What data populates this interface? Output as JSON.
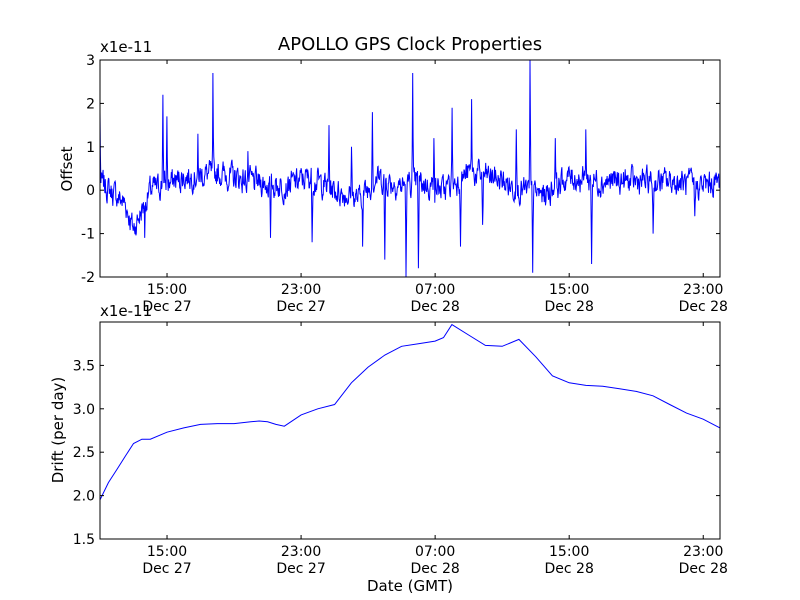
{
  "chart_data": [
    {
      "type": "line",
      "title": "APOLLO GPS Clock Properties",
      "ylabel": "Offset",
      "xlabel": "",
      "y_scale_label": "x1e-11",
      "y_scale": 1e-11,
      "ylim": [
        -2,
        3
      ],
      "yticks": [
        -2,
        -1,
        0,
        1,
        2,
        3
      ],
      "xlim": [
        "2015-12-27T11:00",
        "2015-12-29T00:00"
      ],
      "xticks": [
        {
          "x": "2015-12-27T15:00",
          "line1": "15:00",
          "line2": "Dec 27"
        },
        {
          "x": "2015-12-27T23:00",
          "line1": "23:00",
          "line2": "Dec 27"
        },
        {
          "x": "2015-12-28T07:00",
          "line1": "07:00",
          "line2": "Dec 28"
        },
        {
          "x": "2015-12-28T15:00",
          "line1": "15:00",
          "line2": "Dec 28"
        },
        {
          "x": "2015-12-28T23:00",
          "line1": "23:00",
          "line2": "Dec 28"
        }
      ],
      "color": "#0000ff",
      "noise_level": 0.25,
      "series": [
        {
          "x": [
            "2015-12-27T11:00",
            "2015-12-27T12:30",
            "2015-12-27T13:00",
            "2015-12-27T14:00",
            "2015-12-27T16:00",
            "2015-12-27T18:00",
            "2015-12-27T20:00",
            "2015-12-27T22:00",
            "2015-12-27T23:30",
            "2015-12-28T01:00",
            "2015-12-28T02:30",
            "2015-12-28T03:30",
            "2015-12-28T05:00",
            "2015-12-28T06:00",
            "2015-12-28T07:30",
            "2015-12-28T09:00",
            "2015-12-28T10:30",
            "2015-12-28T12:00",
            "2015-12-28T13:30",
            "2015-12-28T15:00",
            "2015-12-28T17:00",
            "2015-12-28T19:00",
            "2015-12-28T21:00",
            "2015-12-28T23:00",
            "2015-12-29T00:00"
          ],
          "values": [
            0.2,
            -0.3,
            -0.9,
            0.0,
            0.3,
            0.4,
            0.2,
            0.1,
            0.3,
            0.0,
            -0.2,
            0.3,
            0.1,
            0.2,
            0.0,
            0.4,
            0.3,
            0.0,
            -0.1,
            0.3,
            0.2,
            0.2,
            0.2,
            0.1,
            0.2
          ]
        }
      ],
      "spikes": [
        {
          "x": "2015-12-27T11:00",
          "y": 1.8
        },
        {
          "x": "2015-12-27T13:40",
          "y": -1.1
        },
        {
          "x": "2015-12-27T14:45",
          "y": 2.2
        },
        {
          "x": "2015-12-27T15:00",
          "y": 1.7
        },
        {
          "x": "2015-12-27T16:50",
          "y": 1.3
        },
        {
          "x": "2015-12-27T17:45",
          "y": 2.7
        },
        {
          "x": "2015-12-27T19:50",
          "y": 0.9
        },
        {
          "x": "2015-12-27T21:10",
          "y": -1.1
        },
        {
          "x": "2015-12-27T23:40",
          "y": -1.2
        },
        {
          "x": "2015-12-28T00:40",
          "y": 1.5
        },
        {
          "x": "2015-12-28T02:00",
          "y": 1.0
        },
        {
          "x": "2015-12-28T02:40",
          "y": -1.3
        },
        {
          "x": "2015-12-28T03:15",
          "y": 1.8
        },
        {
          "x": "2015-12-28T04:00",
          "y": -1.6
        },
        {
          "x": "2015-12-28T05:15",
          "y": -2.0
        },
        {
          "x": "2015-12-28T05:40",
          "y": 2.7
        },
        {
          "x": "2015-12-28T06:00",
          "y": -1.8
        },
        {
          "x": "2015-12-28T06:55",
          "y": 1.2
        },
        {
          "x": "2015-12-28T08:00",
          "y": 1.9
        },
        {
          "x": "2015-12-28T08:30",
          "y": -1.3
        },
        {
          "x": "2015-12-28T09:10",
          "y": 2.1
        },
        {
          "x": "2015-12-28T09:50",
          "y": -0.8
        },
        {
          "x": "2015-12-28T11:50",
          "y": 1.4
        },
        {
          "x": "2015-12-28T12:40",
          "y": 3.0
        },
        {
          "x": "2015-12-28T12:50",
          "y": -1.9
        },
        {
          "x": "2015-12-28T14:10",
          "y": 1.2
        },
        {
          "x": "2015-12-28T16:00",
          "y": 1.4
        },
        {
          "x": "2015-12-28T16:20",
          "y": -1.7
        },
        {
          "x": "2015-12-28T20:00",
          "y": -1.0
        },
        {
          "x": "2015-12-28T22:30",
          "y": -0.6
        }
      ]
    },
    {
      "type": "line",
      "title": "",
      "xlabel": "Date (GMT)",
      "ylabel": "Drift (per day)",
      "y_scale_label": "x1e-11",
      "y_scale": 1e-11,
      "ylim": [
        1.5,
        4.0
      ],
      "yticks": [
        1.5,
        2.0,
        2.5,
        3.0,
        3.5
      ],
      "ytick_labels": [
        "1.5",
        "2.0",
        "2.5",
        "3.0",
        "3.5"
      ],
      "xlim": [
        "2015-12-27T11:00",
        "2015-12-29T00:00"
      ],
      "xticks": [
        {
          "x": "2015-12-27T15:00",
          "line1": "15:00",
          "line2": "Dec 27"
        },
        {
          "x": "2015-12-27T23:00",
          "line1": "23:00",
          "line2": "Dec 27"
        },
        {
          "x": "2015-12-28T07:00",
          "line1": "07:00",
          "line2": "Dec 28"
        },
        {
          "x": "2015-12-28T15:00",
          "line1": "15:00",
          "line2": "Dec 28"
        },
        {
          "x": "2015-12-28T23:00",
          "line1": "23:00",
          "line2": "Dec 28"
        }
      ],
      "color": "#0000ff",
      "series": [
        {
          "x": [
            "2015-12-27T11:00",
            "2015-12-27T11:30",
            "2015-12-27T12:00",
            "2015-12-27T12:30",
            "2015-12-27T13:00",
            "2015-12-27T13:30",
            "2015-12-27T14:00",
            "2015-12-27T15:00",
            "2015-12-27T16:00",
            "2015-12-27T17:00",
            "2015-12-27T18:00",
            "2015-12-27T19:00",
            "2015-12-27T20:00",
            "2015-12-27T20:30",
            "2015-12-27T21:00",
            "2015-12-27T21:30",
            "2015-12-27T22:00",
            "2015-12-27T23:00",
            "2015-12-28T00:00",
            "2015-12-28T01:00",
            "2015-12-28T02:00",
            "2015-12-28T03:00",
            "2015-12-28T04:00",
            "2015-12-28T05:00",
            "2015-12-28T06:00",
            "2015-12-28T07:00",
            "2015-12-28T07:30",
            "2015-12-28T08:00",
            "2015-12-28T09:00",
            "2015-12-28T10:00",
            "2015-12-28T11:00",
            "2015-12-28T12:00",
            "2015-12-28T13:00",
            "2015-12-28T14:00",
            "2015-12-28T15:00",
            "2015-12-28T16:00",
            "2015-12-28T17:00",
            "2015-12-28T18:00",
            "2015-12-28T19:00",
            "2015-12-28T20:00",
            "2015-12-28T21:00",
            "2015-12-28T22:00",
            "2015-12-28T23:00",
            "2015-12-29T00:00"
          ],
          "values": [
            1.95,
            2.15,
            2.3,
            2.45,
            2.6,
            2.65,
            2.65,
            2.73,
            2.78,
            2.82,
            2.83,
            2.83,
            2.85,
            2.86,
            2.85,
            2.82,
            2.8,
            2.93,
            3.0,
            3.05,
            3.3,
            3.48,
            3.62,
            3.72,
            3.75,
            3.78,
            3.82,
            3.97,
            3.85,
            3.73,
            3.72,
            3.8,
            3.6,
            3.38,
            3.3,
            3.27,
            3.26,
            3.23,
            3.2,
            3.15,
            3.05,
            2.95,
            2.88,
            2.78
          ]
        }
      ]
    }
  ]
}
